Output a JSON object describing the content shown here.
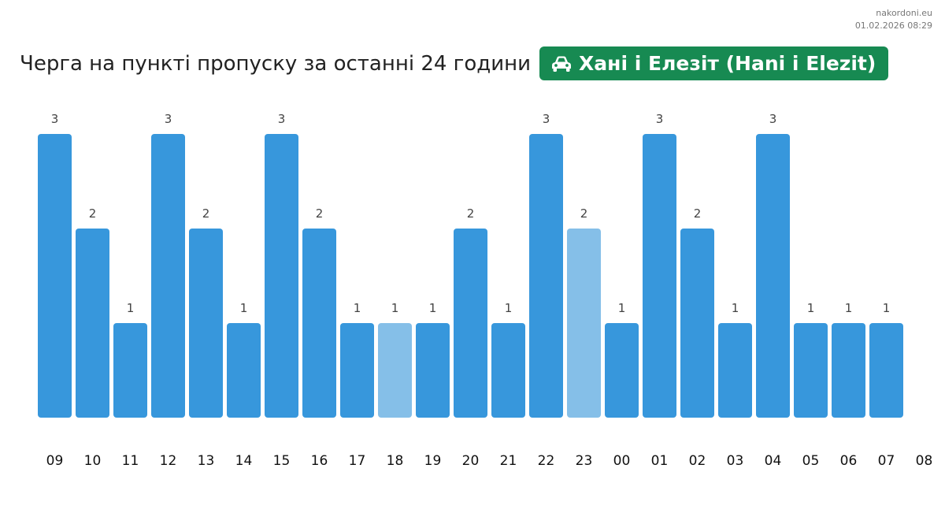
{
  "source": {
    "site": "nakordoni.eu",
    "timestamp": "01.02.2026 08:29"
  },
  "header": {
    "title": "Черга на пункті пропуску за останні 24 години",
    "checkpoint_icon": "car-icon",
    "checkpoint_name": "Хані і Елезіт (Hani i Elezit)",
    "badge_color": "#178a52"
  },
  "chart_data": {
    "type": "bar",
    "categories": [
      "09",
      "10",
      "11",
      "12",
      "13",
      "14",
      "15",
      "16",
      "17",
      "18",
      "19",
      "20",
      "21",
      "22",
      "23",
      "00",
      "01",
      "02",
      "03",
      "04",
      "05",
      "06",
      "07"
    ],
    "values": [
      3,
      2,
      1,
      3,
      2,
      1,
      3,
      2,
      1,
      1,
      1,
      2,
      1,
      3,
      2,
      1,
      3,
      2,
      1,
      3,
      1,
      1,
      1
    ],
    "extra_tick": "08",
    "highlighted": [
      "18",
      "23"
    ],
    "ylim": [
      0,
      3
    ],
    "grid": false,
    "colors": {
      "bar": "#3797dc",
      "highlight": "#85bfe8"
    }
  }
}
